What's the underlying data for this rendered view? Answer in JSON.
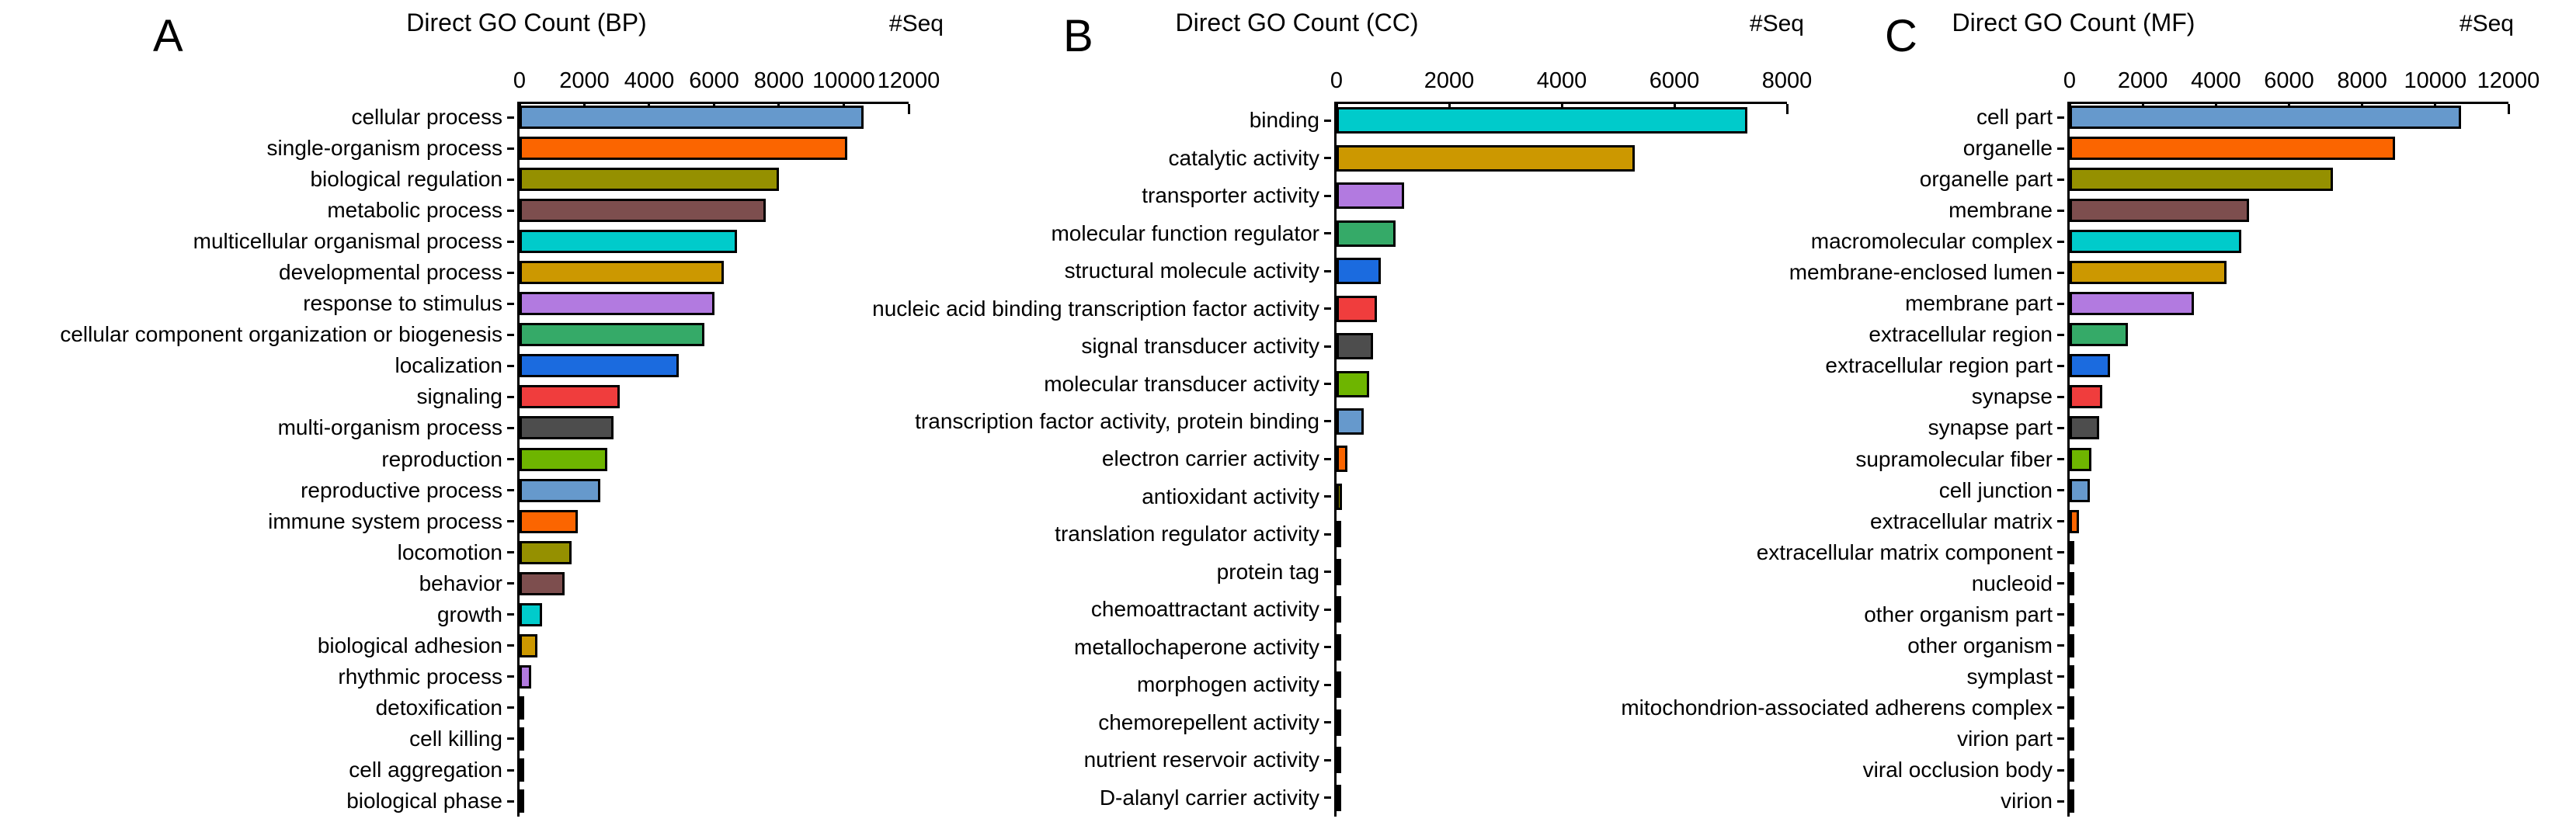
{
  "figure": {
    "background": "#ffffff",
    "axis_color": "#000000",
    "bar_border_color": "#000000",
    "palette": {
      "steelblue": "#6699cc",
      "orange": "#fb6500",
      "olive": "#959000",
      "brown": "#7d4e4e",
      "cyan": "#00cbcb",
      "goldenrod": "#cc9800",
      "violet": "#b27ae0",
      "seagreen": "#35aa68",
      "blue": "#1b6bdf",
      "red": "#f03d3d",
      "darkgray": "#4d4d4d",
      "green": "#6eb500"
    }
  },
  "chart_data": [
    {
      "type": "bar",
      "orientation": "horizontal",
      "panel_label": "A",
      "title": "Direct GO Count (BP)",
      "right_axis_label": "#Seq",
      "xlim": [
        0,
        12000
      ],
      "xticks": [
        0,
        2000,
        4000,
        6000,
        8000,
        10000,
        12000
      ],
      "grid": false,
      "categories": [
        "cellular process",
        "single-organism process",
        "biological regulation",
        "metabolic process",
        "multicellular organismal process",
        "developmental process",
        "response to stimulus",
        "cellular component organization or biogenesis",
        "localization",
        "signaling",
        "multi-organism process",
        "reproduction",
        "reproductive process",
        "immune system process",
        "locomotion",
        "behavior",
        "growth",
        "biological adhesion",
        "rhythmic process",
        "detoxification",
        "cell killing",
        "cell aggregation",
        "biological phase"
      ],
      "values": [
        10600,
        10100,
        8000,
        7600,
        6700,
        6300,
        6000,
        5700,
        4900,
        3100,
        2900,
        2700,
        2500,
        1800,
        1600,
        1400,
        700,
        560,
        360,
        140,
        30,
        20,
        10
      ],
      "colors": [
        "#6699cc",
        "#fb6500",
        "#959000",
        "#7d4e4e",
        "#00cbcb",
        "#cc9800",
        "#b27ae0",
        "#35aa68",
        "#1b6bdf",
        "#f03d3d",
        "#4d4d4d",
        "#6eb500",
        "#6699cc",
        "#fb6500",
        "#959000",
        "#7d4e4e",
        "#00cbcb",
        "#cc9800",
        "#b27ae0",
        "#35aa68",
        "#1b6bdf",
        "#f03d3d",
        "#4d4d4d"
      ]
    },
    {
      "type": "bar",
      "orientation": "horizontal",
      "panel_label": "B",
      "title": "Direct GO Count (CC)",
      "right_axis_label": "#Seq",
      "xlim": [
        0,
        8000
      ],
      "xticks": [
        0,
        2000,
        4000,
        6000,
        8000
      ],
      "grid": false,
      "categories": [
        "binding",
        "catalytic activity",
        "transporter activity",
        "molecular function regulator",
        "structural molecule activity",
        "nucleic acid binding transcription factor activity",
        "signal transducer activity",
        "molecular transducer activity",
        "transcription factor activity, protein binding",
        "electron carrier activity",
        "antioxidant activity",
        "translation regulator activity",
        "protein tag",
        "chemoattractant activity",
        "metallochaperone activity",
        "morphogen activity",
        "chemorepellent activity",
        "nutrient reservoir activity",
        "D-alanyl carrier activity"
      ],
      "values": [
        7300,
        5300,
        1200,
        1050,
        780,
        720,
        650,
        580,
        480,
        190,
        100,
        80,
        35,
        20,
        15,
        12,
        10,
        8,
        6
      ],
      "colors": [
        "#00cbcb",
        "#cc9800",
        "#b27ae0",
        "#35aa68",
        "#1b6bdf",
        "#f03d3d",
        "#4d4d4d",
        "#6eb500",
        "#6699cc",
        "#fb6500",
        "#959000",
        "#7d4e4e",
        "#00cbcb",
        "#cc9800",
        "#b27ae0",
        "#35aa68",
        "#1b6bdf",
        "#f03d3d",
        "#4d4d4d"
      ]
    },
    {
      "type": "bar",
      "orientation": "horizontal",
      "panel_label": "C",
      "title": "Direct GO Count (MF)",
      "right_axis_label": "#Seq",
      "xlim": [
        0,
        12000
      ],
      "xticks": [
        0,
        2000,
        4000,
        6000,
        8000,
        10000,
        12000
      ],
      "grid": false,
      "categories": [
        "cell part",
        "organelle",
        "organelle part",
        "membrane",
        "macromolecular complex",
        "membrane-enclosed lumen",
        "membrane part",
        "extracellular region",
        "extracellular region part",
        "synapse",
        "synapse part",
        "supramolecular fiber",
        "cell junction",
        "extracellular matrix",
        "extracellular matrix component",
        "nucleoid",
        "other organism part",
        "other organism",
        "symplast",
        "mitochondrion-associated adherens complex",
        "virion part",
        "viral occlusion body",
        "virion"
      ],
      "values": [
        10700,
        8900,
        7200,
        4900,
        4700,
        4300,
        3400,
        1600,
        1100,
        900,
        800,
        600,
        550,
        250,
        120,
        50,
        25,
        20,
        15,
        12,
        10,
        8,
        6
      ],
      "colors": [
        "#6699cc",
        "#fb6500",
        "#959000",
        "#7d4e4e",
        "#00cbcb",
        "#cc9800",
        "#b27ae0",
        "#35aa68",
        "#1b6bdf",
        "#f03d3d",
        "#4d4d4d",
        "#6eb500",
        "#6699cc",
        "#fb6500",
        "#959000",
        "#7d4e4e",
        "#00cbcb",
        "#cc9800",
        "#b27ae0",
        "#35aa68",
        "#1b6bdf",
        "#f03d3d",
        "#4d4d4d"
      ]
    }
  ]
}
